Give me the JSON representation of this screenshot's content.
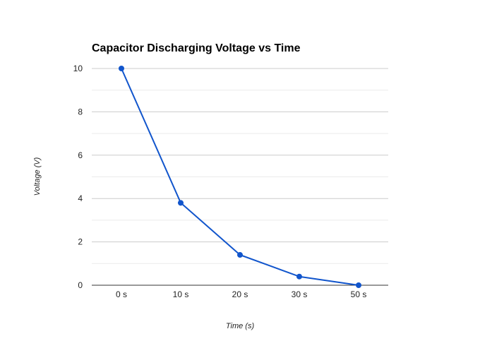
{
  "chart_data": {
    "type": "line",
    "title": "Capacitor Discharging Voltage vs Time",
    "xlabel": "Time (s)",
    "ylabel": "Voltage (V)",
    "categories": [
      "0 s",
      "10 s",
      "20 s",
      "30 s",
      "50 s"
    ],
    "series": [
      {
        "values": [
          10,
          3.8,
          1.4,
          0.4,
          0
        ]
      }
    ],
    "ylim": [
      0,
      10
    ],
    "yticks": [
      0,
      2,
      4,
      6,
      8,
      10
    ],
    "grid": true,
    "minor_grid": true,
    "legend": "none",
    "colors": {
      "series": "#1155cc",
      "major_grid": "#cccccc",
      "minor_grid": "#ebebeb",
      "axis": "#333333"
    }
  }
}
